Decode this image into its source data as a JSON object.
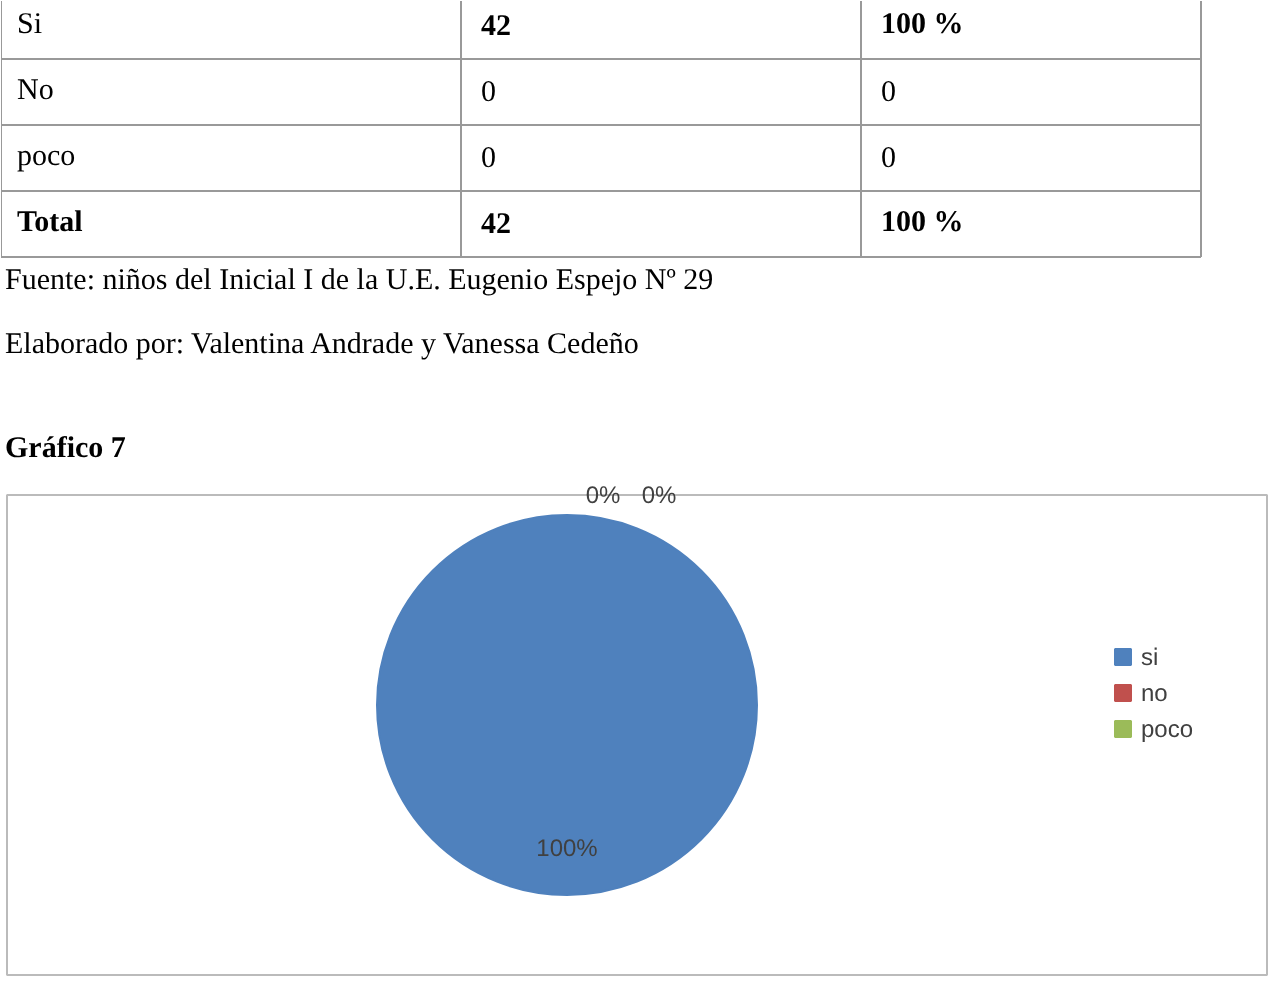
{
  "chart_data": {
    "type": "pie",
    "title": "Gráfico 7",
    "categories": [
      "si",
      "no",
      "poco"
    ],
    "values": [
      100,
      0,
      0
    ],
    "colors": [
      "#4f81bd",
      "#c0504d",
      "#9bbb59"
    ],
    "value_labels": [
      "100%",
      "0%",
      "0%"
    ],
    "legend": "right",
    "annotations": [
      "Si",
      "42",
      "100 %",
      "No",
      "0",
      "0",
      "poco",
      "0",
      "0",
      "Total",
      "42",
      "100 %",
      "Fuente: niños del Inicial I de la U.E. Eugenio Espejo Nº 29",
      "Elaborado por: Valentina Andrade  y Vanessa Cedeño"
    ]
  }
}
